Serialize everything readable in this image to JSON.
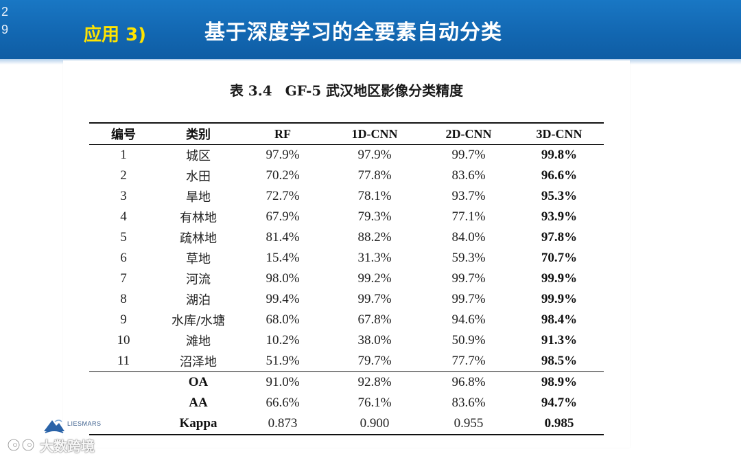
{
  "slide": {
    "page_number": "29",
    "section_label": "应用 3)",
    "title": "基于深度学习的全要素自动分类"
  },
  "table": {
    "caption_number": "表 3.4",
    "caption_title": "GF-5 武汉地区影像分类精度",
    "headers": [
      "编号",
      "类别",
      "RF",
      "1D-CNN",
      "2D-CNN",
      "3D-CNN"
    ],
    "rows": [
      [
        "1",
        "城区",
        "97.9%",
        "97.9%",
        "99.7%",
        "99.8%"
      ],
      [
        "2",
        "水田",
        "70.2%",
        "77.8%",
        "83.6%",
        "96.6%"
      ],
      [
        "3",
        "旱地",
        "72.7%",
        "78.1%",
        "93.7%",
        "95.3%"
      ],
      [
        "4",
        "有林地",
        "67.9%",
        "79.3%",
        "77.1%",
        "93.9%"
      ],
      [
        "5",
        "疏林地",
        "81.4%",
        "88.2%",
        "84.0%",
        "97.8%"
      ],
      [
        "6",
        "草地",
        "15.4%",
        "31.3%",
        "59.3%",
        "70.7%"
      ],
      [
        "7",
        "河流",
        "98.0%",
        "99.2%",
        "99.7%",
        "99.9%"
      ],
      [
        "8",
        "湖泊",
        "99.4%",
        "99.7%",
        "99.7%",
        "99.9%"
      ],
      [
        "9",
        "水库/水塘",
        "68.0%",
        "67.8%",
        "94.6%",
        "98.4%"
      ],
      [
        "10",
        "滩地",
        "10.2%",
        "38.0%",
        "50.9%",
        "91.3%"
      ],
      [
        "11",
        "沼泽地",
        "51.9%",
        "79.7%",
        "77.7%",
        "98.5%"
      ]
    ],
    "summary": [
      [
        "OA",
        "91.0%",
        "92.8%",
        "96.8%",
        "98.9%"
      ],
      [
        "AA",
        "66.6%",
        "76.1%",
        "83.6%",
        "94.7%"
      ],
      [
        "Kappa",
        "0.873",
        "0.900",
        "0.955",
        "0.985"
      ]
    ]
  },
  "footer": {
    "logo_text": "LIESMARS",
    "watermark_text": "大数跨境"
  }
}
